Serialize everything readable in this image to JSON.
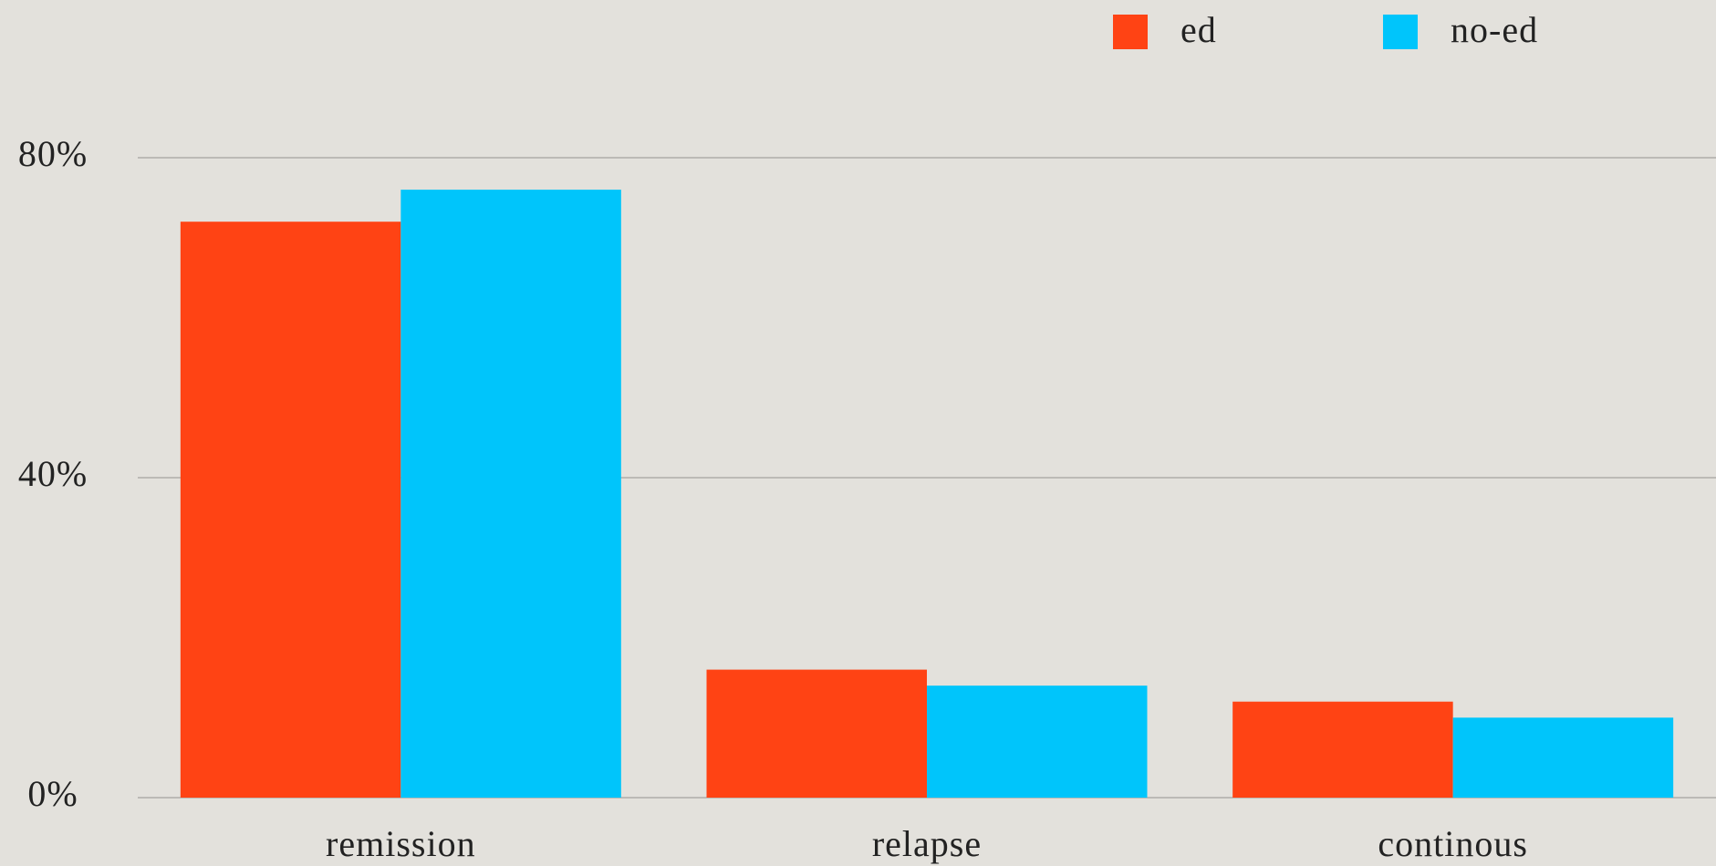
{
  "chart_data": {
    "type": "bar",
    "categories": [
      "remission",
      "relapse",
      "continous"
    ],
    "series": [
      {
        "name": "ed",
        "color": "#ff4314",
        "values": [
          72,
          16,
          12
        ]
      },
      {
        "name": "no-ed",
        "color": "#00c5fb",
        "values": [
          76,
          14,
          10
        ]
      }
    ],
    "ylim": [
      0,
      80
    ],
    "yticks": [
      {
        "value": 0,
        "label": "0%"
      },
      {
        "value": 40,
        "label": "40%"
      },
      {
        "value": 80,
        "label": "80%"
      }
    ],
    "grid": true,
    "legend": "top-right"
  }
}
